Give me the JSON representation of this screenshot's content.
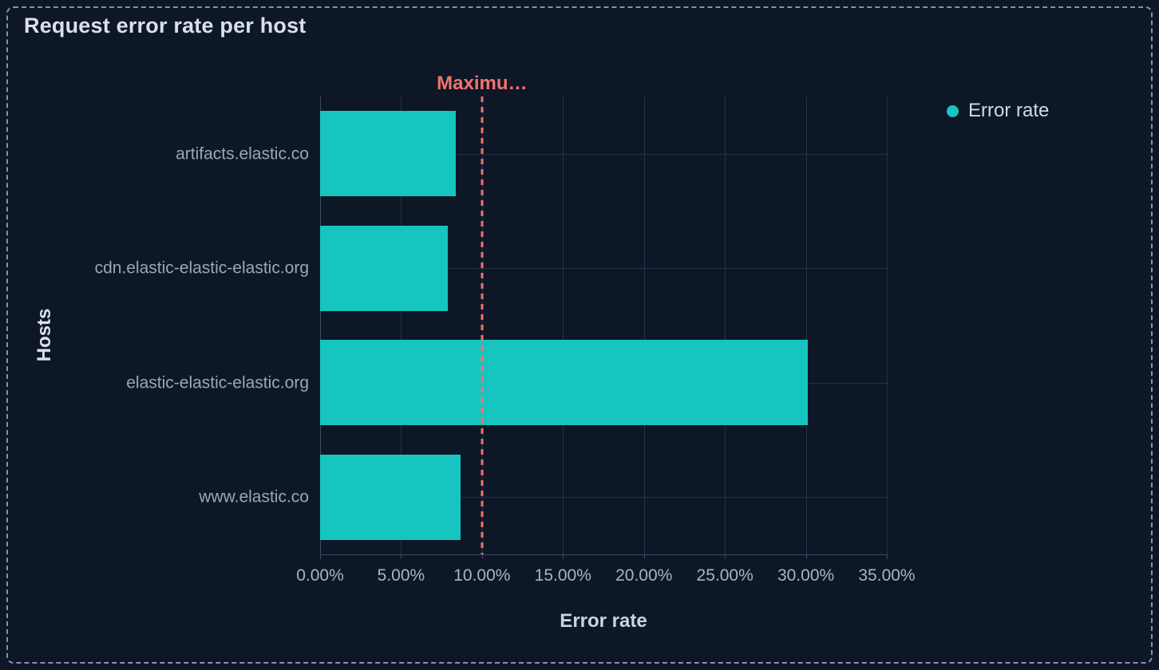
{
  "panel": {
    "title": "Request error rate per host"
  },
  "legend": {
    "position": "top-right",
    "items": [
      {
        "label": "Error rate",
        "color": "#16c5c0"
      }
    ]
  },
  "colors": {
    "background": "#0d1726",
    "bar": "#16c5c0",
    "threshold": "#f4726e",
    "gridline": "#26314b",
    "axis_line": "#3d4a66",
    "title_text": "#d9e0ea",
    "tick_text": "#9aa6ba",
    "panel_border": "#8494ac"
  },
  "chart_data": {
    "type": "bar",
    "orientation": "horizontal",
    "title": "Request error rate per host",
    "xlabel": "Error rate",
    "ylabel": "Hosts",
    "categories": [
      "artifacts.elastic.co",
      "cdn.elastic-elastic-elastic.org",
      "elastic-elastic-elastic.org",
      "www.elastic.co"
    ],
    "series": [
      {
        "name": "Error rate",
        "color": "#16c5c0",
        "values_pct": [
          8.4,
          7.9,
          30.1,
          8.7
        ]
      }
    ],
    "xlim_pct": [
      0,
      35
    ],
    "x_tick_values_pct": [
      0,
      5,
      10,
      15,
      20,
      25,
      30,
      35
    ],
    "x_tick_labels": [
      "0.00%",
      "5.00%",
      "10.00%",
      "15.00%",
      "20.00%",
      "25.00%",
      "30.00%",
      "35.00%"
    ],
    "grid": true,
    "legend_position": "top-right",
    "annotations": [
      {
        "type": "vertical-line",
        "label": "Maximu…",
        "x_pct": 10,
        "style": "dashed",
        "color": "#f4726e"
      }
    ]
  }
}
